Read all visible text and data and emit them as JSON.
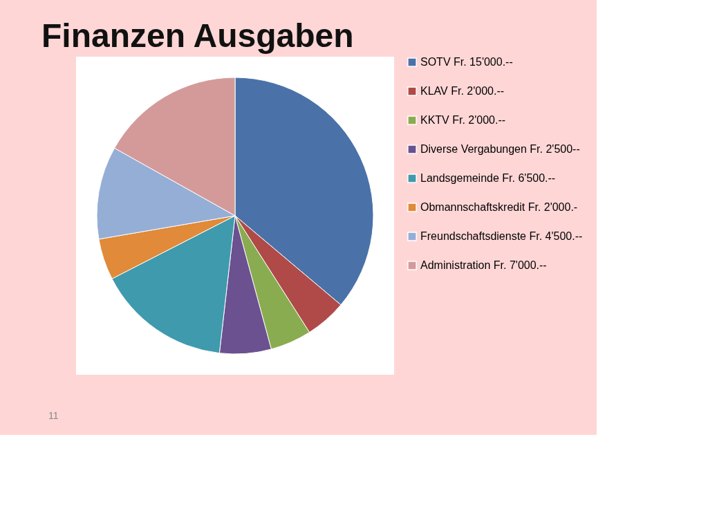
{
  "chart_data": {
    "type": "pie",
    "title": "Finanzen Ausgaben",
    "categories": [
      "SOTV Fr. 15'000.--",
      "KLAV Fr. 2'000.--",
      "KKTV Fr. 2'000.--",
      "Diverse Vergabungen Fr. 2'500--",
      "Landsgemeinde Fr. 6'500.--",
      "Obmannschaftskredit Fr. 2'000.-",
      "Freundschaftsdienste Fr. 4'500.--",
      "Administration Fr. 7'000.--"
    ],
    "values": [
      15000,
      2000,
      2000,
      2500,
      6500,
      2000,
      4500,
      7000
    ],
    "colors": [
      "#4a72a8",
      "#b04a48",
      "#8aac50",
      "#6b5190",
      "#3f9aad",
      "#e08a3a",
      "#95aed6",
      "#d49a9a"
    ],
    "legend": "right",
    "annotations": [
      "11"
    ]
  }
}
